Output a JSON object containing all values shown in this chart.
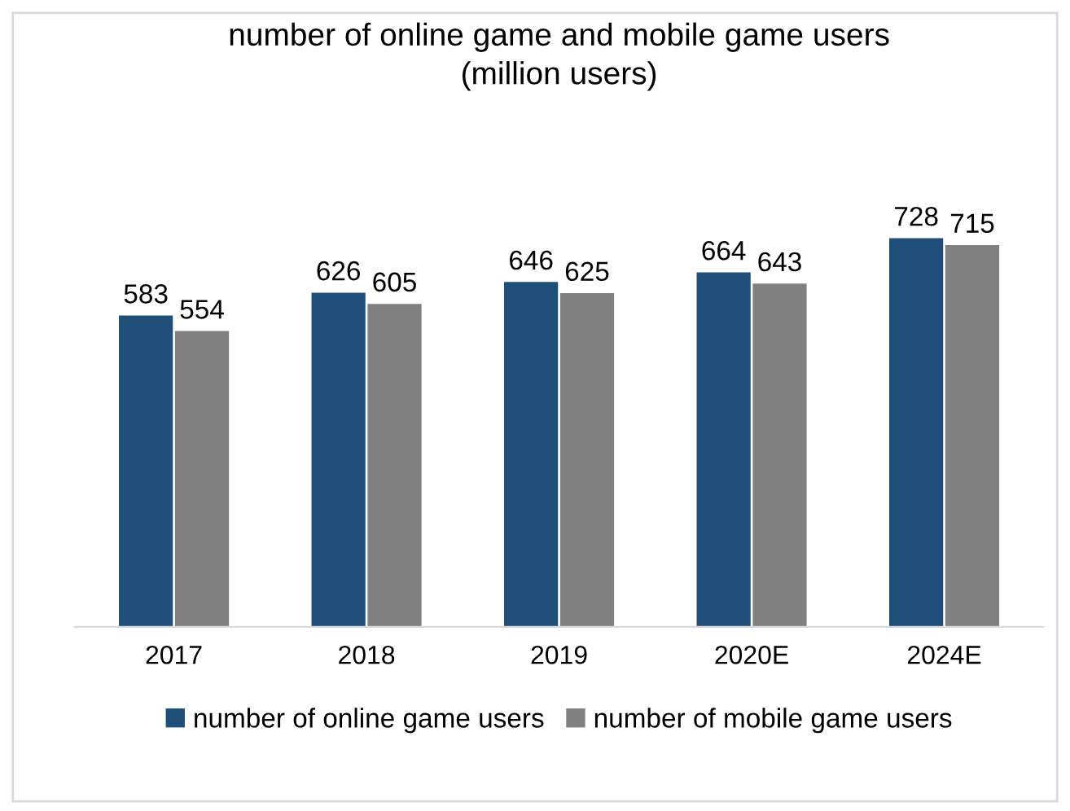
{
  "chart_data": {
    "type": "bar",
    "title": "number of online game and mobile game users\n(million users)",
    "categories": [
      "2017",
      "2018",
      "2019",
      "2020E",
      "2024E"
    ],
    "series": [
      {
        "name": "number of online game users",
        "color": "#1f4e79",
        "values": [
          583,
          626,
          646,
          664,
          728
        ]
      },
      {
        "name": "number of mobile game users",
        "color": "#808080",
        "values": [
          554,
          605,
          625,
          643,
          715
        ]
      }
    ],
    "data_labels": true,
    "legend": "bottom",
    "grid": false,
    "tick_labels": "x"
  }
}
